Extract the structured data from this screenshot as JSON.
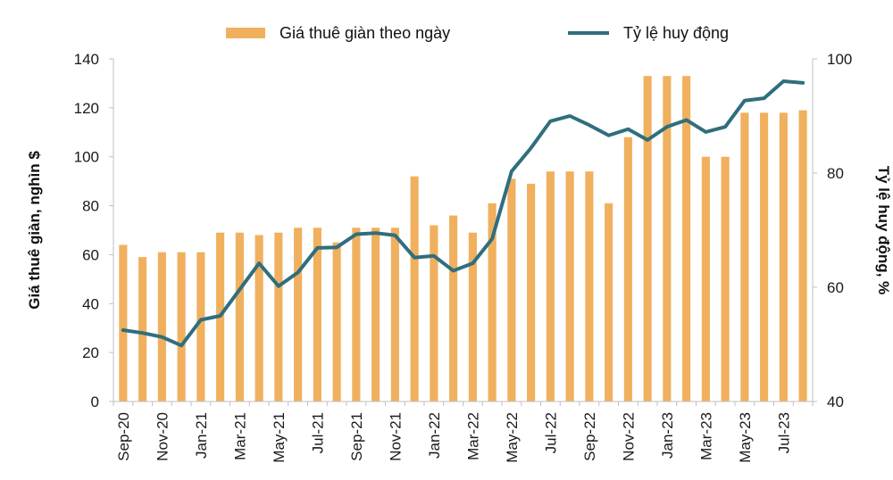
{
  "chart_data": {
    "type": "bar",
    "categories": [
      "Sep-20",
      "Oct-20",
      "Nov-20",
      "Dec-20",
      "Jan-21",
      "Feb-21",
      "Mar-21",
      "Apr-21",
      "May-21",
      "Jun-21",
      "Jul-21",
      "Aug-21",
      "Sep-21",
      "Oct-21",
      "Nov-21",
      "Dec-21",
      "Jan-22",
      "Feb-22",
      "Mar-22",
      "Apr-22",
      "May-22",
      "Jun-22",
      "Jul-22",
      "Aug-22",
      "Sep-22",
      "Oct-22",
      "Nov-22",
      "Dec-22",
      "Jan-23",
      "Feb-23",
      "Mar-23",
      "Apr-23",
      "May-23",
      "Jun-23",
      "Jul-23",
      "Aug-23"
    ],
    "x_tick_labels": [
      "Sep-20",
      "",
      "Nov-20",
      "",
      "Jan-21",
      "",
      "Mar-21",
      "",
      "May-21",
      "",
      "Jul-21",
      "",
      "Sep-21",
      "",
      "Nov-21",
      "",
      "Jan-22",
      "",
      "Mar-22",
      "",
      "May-22",
      "",
      "Jul-22",
      "",
      "Sep-22",
      "",
      "Nov-22",
      "",
      "Jan-23",
      "",
      "Mar-23",
      "",
      "May-23",
      "",
      "Jul-23",
      ""
    ],
    "series": [
      {
        "name": "Giá thuê giàn theo ngày",
        "type": "bar",
        "axis": "left",
        "color": "#F0B05E",
        "values": [
          64,
          59,
          61,
          61,
          61,
          69,
          69,
          68,
          69,
          71,
          71,
          65,
          71,
          71,
          71,
          92,
          72,
          76,
          69,
          81,
          91,
          89,
          94,
          94,
          94,
          81,
          108,
          133,
          133,
          133,
          100,
          100,
          118,
          118,
          118,
          119
        ]
      },
      {
        "name": "Tỷ lệ huy động",
        "type": "line",
        "axis": "right",
        "color": "#2F6E7E",
        "values": [
          52.5,
          52,
          51.3,
          49.8,
          54.3,
          55,
          59.6,
          64.2,
          60.2,
          62.6,
          66.9,
          67,
          69.3,
          69.5,
          69.1,
          65.2,
          65.5,
          62.9,
          64.2,
          68.5,
          80.3,
          84.4,
          89.1,
          90,
          88.4,
          86.6,
          87.7,
          85.8,
          88.1,
          89.3,
          87.2,
          88.1,
          92.7,
          93.1,
          96.1,
          95.8
        ]
      }
    ],
    "ylabel": "Giá thuê giàn, nghìn $",
    "y2label": "Tỷ lệ huy động, %",
    "ylim": [
      0,
      140
    ],
    "yticks": [
      0,
      20,
      40,
      60,
      80,
      100,
      120,
      140
    ],
    "y2lim": [
      40,
      100
    ],
    "y2ticks": [
      40,
      60,
      80,
      100
    ],
    "legend_position": "top",
    "grid": false
  }
}
